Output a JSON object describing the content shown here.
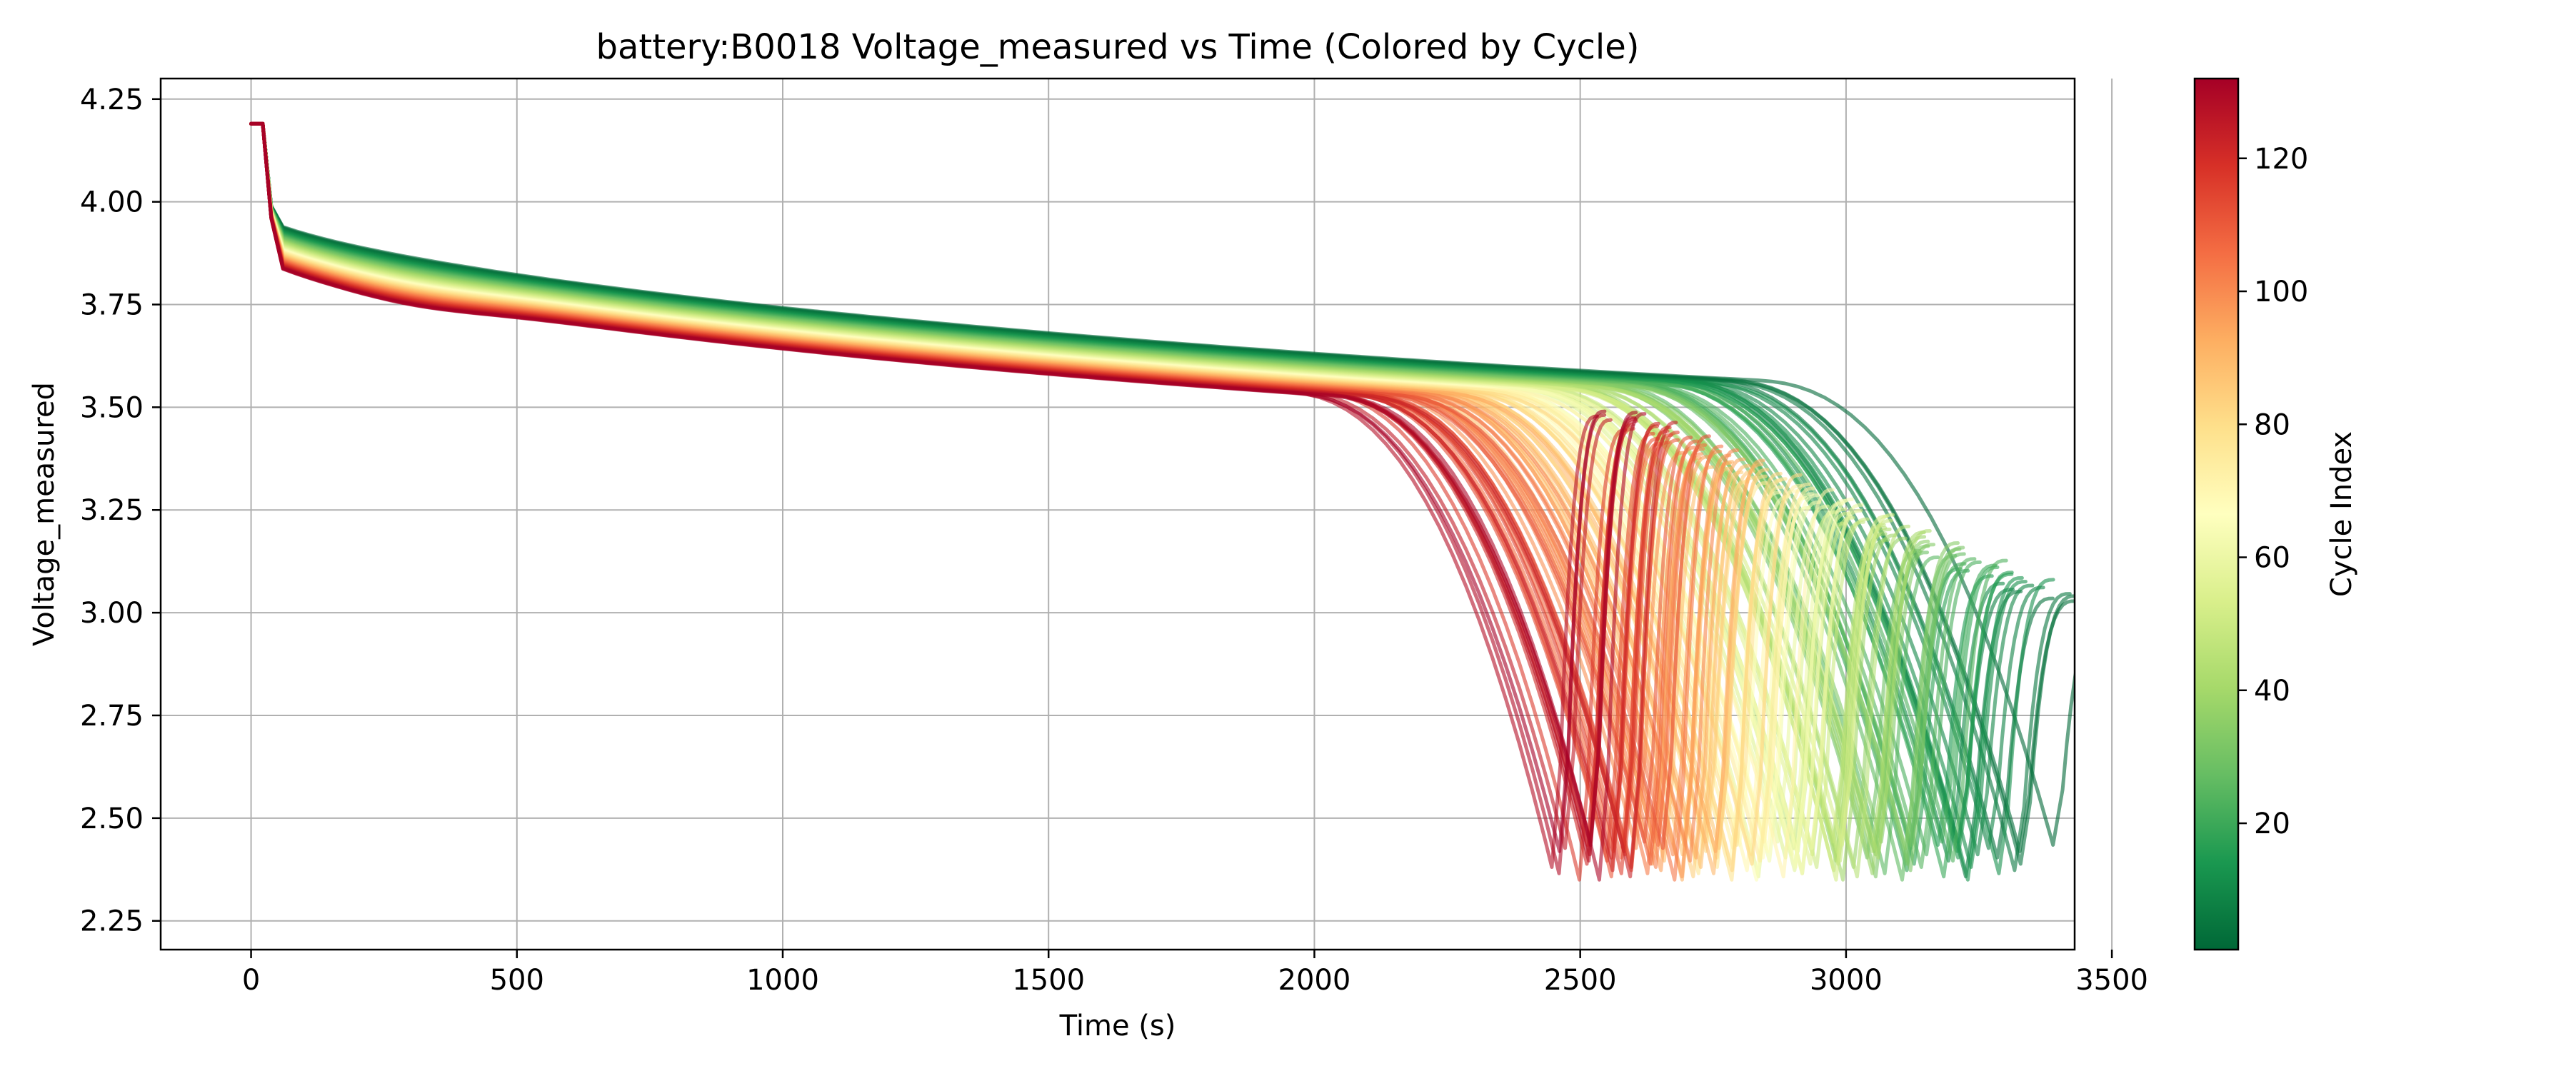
{
  "chart_data": {
    "type": "line",
    "title": "battery:B0018 Voltage_measured vs Time (Colored by Cycle)",
    "xlabel": "Time (s)",
    "ylabel": "Voltage_measured",
    "xlim": [
      -170,
      3430
    ],
    "ylim": [
      2.18,
      4.3
    ],
    "xticks": [
      0,
      500,
      1000,
      1500,
      2000,
      2500,
      3000,
      3500
    ],
    "yticks": [
      2.25,
      2.5,
      2.75,
      3.0,
      3.25,
      3.5,
      3.75,
      4.0,
      4.25
    ],
    "xtick_labels": [
      "0",
      "500",
      "1000",
      "1500",
      "2000",
      "2500",
      "3000",
      "3500"
    ],
    "ytick_labels": [
      "2.25",
      "2.50",
      "2.75",
      "3.00",
      "3.25",
      "3.50",
      "3.75",
      "4.00",
      "4.25"
    ],
    "grid": true,
    "colormap": "RdYlGn_r",
    "colormap_colors": [
      "#006837",
      "#1a9850",
      "#66bd63",
      "#a6d96a",
      "#d9ef8b",
      "#ffffbf",
      "#fee08b",
      "#fdae61",
      "#f46d43",
      "#d73027",
      "#a50026"
    ],
    "colorbar": {
      "label": "Cycle Index",
      "range": [
        1,
        132
      ],
      "ticks": [
        20,
        40,
        60,
        80,
        100,
        120
      ],
      "tick_labels": [
        "20",
        "40",
        "60",
        "80",
        "100",
        "120"
      ]
    },
    "series_summary": {
      "cycle_count": 132,
      "discharge_end_time_first_cycle": 3330,
      "discharge_end_time_last_cycle": 2480,
      "min_voltage": 2.28
    }
  }
}
